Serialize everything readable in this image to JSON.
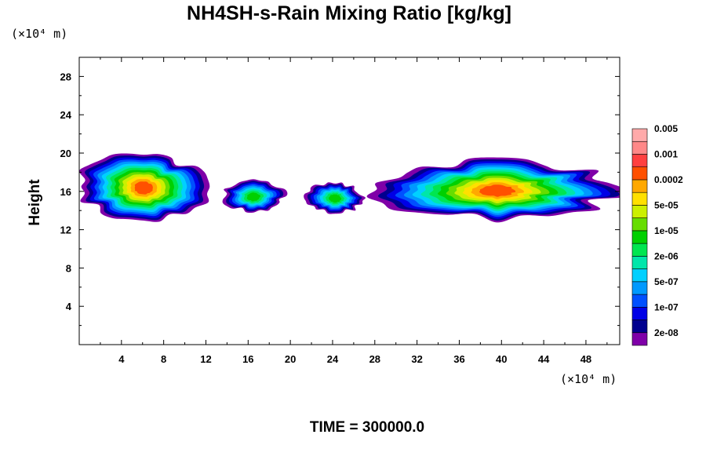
{
  "chart_data": {
    "type": "heatmap",
    "title": "NH4SH-s-Rain Mixing Ratio [kg/kg]",
    "ylabel": "Height",
    "y_unit": "(×10⁴ m)",
    "x_unit": "(×10⁴ m)",
    "xlim": [
      0,
      51.2
    ],
    "ylim": [
      0,
      30
    ],
    "x_ticks": [
      4,
      8,
      12,
      16,
      20,
      24,
      28,
      32,
      36,
      40,
      44,
      48
    ],
    "y_ticks": [
      4,
      8,
      12,
      16,
      20,
      24,
      28
    ],
    "footer": "TIME = 300000.0",
    "colorbar": {
      "colors": [
        "#7f00a8",
        "#00008f",
        "#0000e6",
        "#0050ff",
        "#0099ff",
        "#00d0ff",
        "#00e6aa",
        "#00e650",
        "#00d000",
        "#66dd00",
        "#ccf000",
        "#ffe000",
        "#ffa800",
        "#ff5000",
        "#ff4040",
        "#ff8888",
        "#ffaaaa"
      ],
      "labels": [
        "2e-08",
        "1e-07",
        "5e-07",
        "2e-06",
        "1e-05",
        "5e-05",
        "0.0002",
        "0.001",
        "0.005"
      ]
    },
    "regions": [
      {
        "x": [
          0,
          12.2
        ],
        "y": [
          13.1,
          19.9
        ],
        "max_level": 13
      },
      {
        "x": [
          13.5,
          19.5
        ],
        "y": [
          13.9,
          17.1
        ],
        "max_level": 8
      },
      {
        "x": [
          21.5,
          27.0
        ],
        "y": [
          13.8,
          16.9
        ],
        "max_level": 8
      },
      {
        "x": [
          28.0,
          51.2
        ],
        "y": [
          13.1,
          19.3
        ],
        "max_level": 13
      }
    ]
  }
}
